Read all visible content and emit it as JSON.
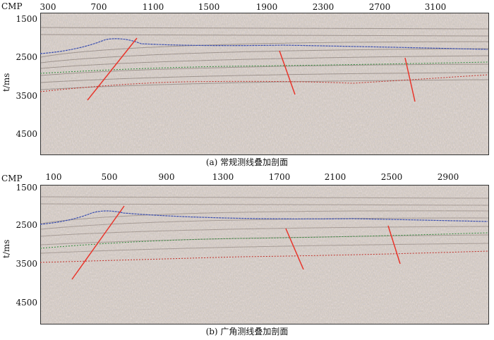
{
  "panels": [
    {
      "id": "a",
      "cmp_label": "CMP",
      "x_ticks": [
        "300",
        "700",
        "1100",
        "1500",
        "1900",
        "2300",
        "2700",
        "3100"
      ],
      "y_ticks": [
        "1500",
        "2500",
        "3500",
        "4500"
      ],
      "y_axis_label": "t/ms",
      "caption": "(a) 常规测线叠加剖面"
    },
    {
      "id": "b",
      "cmp_label": "CMP",
      "x_ticks": [
        "100",
        "500",
        "900",
        "1300",
        "1700",
        "2100",
        "2500",
        "2900"
      ],
      "y_ticks": [
        "1500",
        "2500",
        "3500",
        "4500"
      ],
      "y_axis_label": "t/ms",
      "caption": "(b) 广角测线叠加剖面"
    }
  ],
  "colors": {
    "fault": "#e8352b",
    "horizon_blue": "#3b4fb0",
    "horizon_green": "#2f8a3a",
    "horizon_red": "#c0302a",
    "section_base": "#cfc6ba"
  }
}
